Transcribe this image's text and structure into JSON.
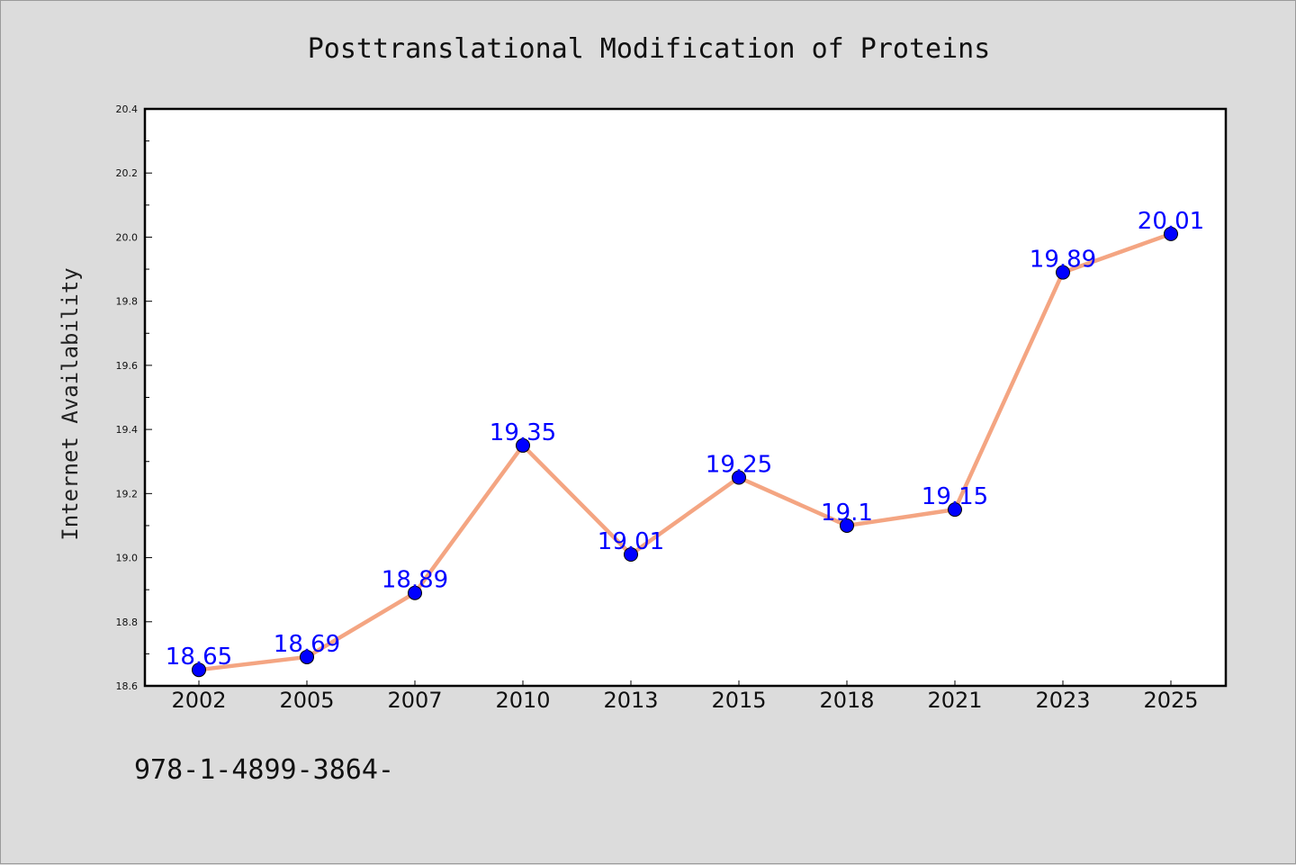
{
  "colors": {
    "background": "#dcdcdc",
    "plot_background": "#ffffff",
    "line": "#f4a582",
    "marker": "#0000ff",
    "data_label": "#0000ff"
  },
  "footer": {
    "text": "978-1-4899-3864-"
  },
  "chart_data": {
    "type": "line",
    "title": "Posttranslational Modification of Proteins",
    "xlabel": "",
    "ylabel": "Internet Availability",
    "categories": [
      "2002",
      "2005",
      "2007",
      "2010",
      "2013",
      "2015",
      "2018",
      "2021",
      "2023",
      "2025"
    ],
    "series": [
      {
        "values": [
          18.65,
          18.69,
          18.89,
          19.35,
          19.01,
          19.25,
          19.1,
          19.15,
          19.89,
          20.01
        ],
        "labels": [
          "18.65",
          "18.69",
          "18.89",
          "19.35",
          "19.01",
          "19.25",
          "19.1",
          "19.15",
          "19.89",
          "20.01"
        ]
      }
    ],
    "ylim": [
      18.6,
      20.4
    ],
    "yticks": [
      "18.6",
      "18.8",
      "19.0",
      "19.2",
      "19.4",
      "19.6",
      "19.8",
      "20.0",
      "20.2",
      "20.4"
    ],
    "grid": false,
    "legend": "none"
  }
}
